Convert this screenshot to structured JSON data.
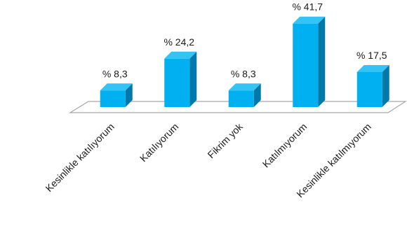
{
  "chart_data": {
    "type": "bar",
    "style": "3d-column",
    "categories": [
      "Kesinlikle katılıyorum",
      "Katılıyorum",
      "Fikrim yok",
      "Katılmıyorum",
      "Kesinlikle katılmıyorum"
    ],
    "values": [
      8.3,
      24.2,
      8.3,
      41.7,
      17.5
    ],
    "data_labels": [
      "% 8,3",
      "% 24,2",
      "% 8,3",
      "% 41,7",
      "% 17,5"
    ],
    "title": "",
    "xlabel": "",
    "ylabel": "",
    "ylim": [
      0,
      45
    ],
    "grid": false,
    "legend": "none",
    "colors": {
      "front": "#00b0f0",
      "top": "#33c3f5",
      "side": "#0079a8",
      "floor_edge": "#a6a6a6"
    }
  }
}
